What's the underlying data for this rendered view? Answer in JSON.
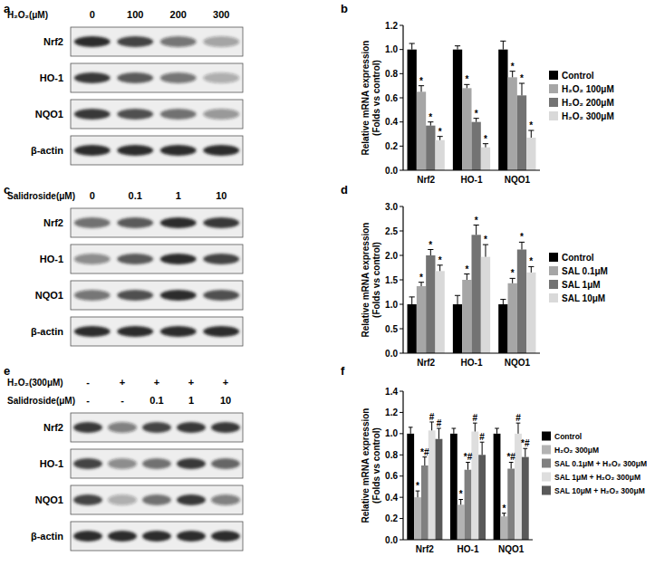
{
  "chart_data": [
    {
      "panel": "b",
      "type": "bar",
      "ylabel": "Relative mRNA expression",
      "ylabel_sub": "(Folds vs control)",
      "categories": [
        "Nrf2",
        "HO-1",
        "NQO1"
      ],
      "ylim": [
        0,
        1.2
      ],
      "yticks": [
        {
          "value": 0,
          "label": "0.0"
        },
        0.2,
        0.4,
        0.6,
        0.8,
        {
          "value": 1,
          "label": "1.0"
        },
        1.2
      ],
      "legend": "right",
      "series": [
        {
          "name": "Control",
          "color": "#000000",
          "values": [
            1.0,
            1.0,
            1.0
          ],
          "errors": [
            0.05,
            0.03,
            0.07
          ],
          "significance": [
            null,
            null,
            null
          ]
        },
        {
          "name": "H₂O₂ 100μM",
          "color": "#a6a6a6",
          "values": [
            0.65,
            0.68,
            0.77
          ],
          "errors": [
            0.05,
            0.03,
            0.05
          ],
          "significance": [
            "*",
            "*",
            "*"
          ]
        },
        {
          "name": "H₂O₂ 200μM",
          "color": "#737373",
          "values": [
            0.37,
            0.4,
            0.62
          ],
          "errors": [
            0.03,
            0.03,
            0.1
          ],
          "significance": [
            "*",
            "*",
            "*"
          ]
        },
        {
          "name": "H₂O₂ 300μM",
          "color": "#d9d9d9",
          "values": [
            0.25,
            0.19,
            0.27
          ],
          "errors": [
            0.03,
            0.03,
            0.06
          ],
          "significance": [
            "*",
            "*",
            "*"
          ]
        }
      ]
    },
    {
      "panel": "d",
      "type": "bar",
      "ylabel": "Relative mRNA expression",
      "ylabel_sub": "(Folds vs control)",
      "categories": [
        "Nrf2",
        "HO-1",
        "NQO1"
      ],
      "ylim": [
        0,
        3
      ],
      "yticks": [
        {
          "value": 0,
          "label": "0.0"
        },
        0.5,
        {
          "value": 1,
          "label": "1.0"
        },
        1.5,
        {
          "value": 2,
          "label": "2.0"
        },
        2.5,
        {
          "value": 3,
          "label": "3.0"
        }
      ],
      "legend": "right",
      "series": [
        {
          "name": "Control",
          "color": "#000000",
          "values": [
            1.0,
            1.0,
            1.0
          ],
          "errors": [
            0.15,
            0.18,
            0.1
          ],
          "significance": [
            null,
            null,
            null
          ]
        },
        {
          "name": "SAL 0.1μM",
          "color": "#a6a6a6",
          "values": [
            1.37,
            1.5,
            1.43
          ],
          "errors": [
            0.08,
            0.12,
            0.1
          ],
          "significance": [
            "*",
            "*",
            "*"
          ]
        },
        {
          "name": "SAL 1μM",
          "color": "#737373",
          "values": [
            2.0,
            2.42,
            2.12
          ],
          "errors": [
            0.12,
            0.2,
            0.15
          ],
          "significance": [
            "*",
            "*",
            "*"
          ]
        },
        {
          "name": "SAL 10μM",
          "color": "#d9d9d9",
          "values": [
            1.68,
            1.97,
            1.65
          ],
          "errors": [
            0.12,
            0.25,
            0.12
          ],
          "significance": [
            "*",
            "*",
            "*"
          ]
        }
      ]
    },
    {
      "panel": "f",
      "type": "bar",
      "ylabel": "Relative mRNA expression",
      "ylabel_sub": "(Folds vs control)",
      "categories": [
        "Nrf2",
        "HO-1",
        "NQO1"
      ],
      "ylim": [
        0,
        1.4
      ],
      "yticks": [
        {
          "value": 0,
          "label": "0.0"
        },
        0.2,
        0.4,
        0.6,
        0.8,
        {
          "value": 1,
          "label": "1.0"
        },
        1.2,
        1.4
      ],
      "legend": "right",
      "series": [
        {
          "name": "Control",
          "color": "#000000",
          "values": [
            1.0,
            1.0,
            1.0
          ],
          "errors": [
            0.06,
            0.05,
            0.05
          ],
          "significance": [
            null,
            null,
            null
          ]
        },
        {
          "name": "H₂O₂ 300μM",
          "color": "#b3b3b3",
          "values": [
            0.4,
            0.33,
            0.22
          ],
          "errors": [
            0.06,
            0.05,
            0.03
          ],
          "significance": [
            "*",
            "*",
            "*"
          ]
        },
        {
          "name": "SAL 0.1μM + H₂O₂ 300μM",
          "color": "#808080",
          "values": [
            0.7,
            0.66,
            0.67
          ],
          "errors": [
            0.08,
            0.07,
            0.06
          ],
          "significance": [
            "*#",
            "*#",
            "*#"
          ]
        },
        {
          "name": "SAL 1μM + H₂O₂ 300μM",
          "color": "#dedede",
          "values": [
            1.03,
            1.02,
            1.0
          ],
          "errors": [
            0.08,
            0.08,
            0.1
          ],
          "significance": [
            "#",
            "#",
            "#"
          ]
        },
        {
          "name": "SAL 10μM + H₂O₂ 300μM",
          "color": "#595959",
          "values": [
            0.95,
            0.8,
            0.78
          ],
          "errors": [
            0.1,
            0.12,
            0.08
          ],
          "significance": [
            "#",
            "#",
            "*#"
          ]
        }
      ]
    }
  ],
  "blots": [
    {
      "panel": "a",
      "headers": [
        {
          "label": "H₂O₂(μM)",
          "lanes": [
            "0",
            "100",
            "200",
            "300"
          ]
        }
      ],
      "rows": [
        {
          "label": "Nrf2",
          "band_intensity": [
            0.9,
            0.8,
            0.55,
            0.35
          ]
        },
        {
          "label": "HO-1",
          "band_intensity": [
            0.85,
            0.7,
            0.55,
            0.3
          ]
        },
        {
          "label": "NQO1",
          "band_intensity": [
            0.85,
            0.75,
            0.6,
            0.4
          ]
        },
        {
          "label": "β-actin",
          "band_intensity": [
            0.9,
            0.9,
            0.9,
            0.9
          ]
        }
      ]
    },
    {
      "panel": "c",
      "headers": [
        {
          "label": "Salidroside(μM)",
          "lanes": [
            "0",
            "0.1",
            "1",
            "10"
          ]
        }
      ],
      "rows": [
        {
          "label": "Nrf2",
          "band_intensity": [
            0.6,
            0.7,
            0.9,
            0.85
          ]
        },
        {
          "label": "HO-1",
          "band_intensity": [
            0.45,
            0.7,
            0.9,
            0.8
          ]
        },
        {
          "label": "NQO1",
          "band_intensity": [
            0.55,
            0.75,
            0.9,
            0.75
          ]
        },
        {
          "label": "β-actin",
          "band_intensity": [
            0.9,
            0.9,
            0.9,
            0.9
          ]
        }
      ]
    },
    {
      "panel": "e",
      "headers": [
        {
          "label": "H₂O₂(300μM)",
          "lanes": [
            "-",
            "+",
            "+",
            "+",
            "+"
          ]
        },
        {
          "label": "Salidroside(μM)",
          "lanes": [
            "-",
            "-",
            "0.1",
            "1",
            "10"
          ]
        }
      ],
      "rows": [
        {
          "label": "Nrf2",
          "band_intensity": [
            0.85,
            0.5,
            0.8,
            0.85,
            0.85
          ]
        },
        {
          "label": "HO-1",
          "band_intensity": [
            0.8,
            0.45,
            0.6,
            0.85,
            0.65
          ]
        },
        {
          "label": "NQO1",
          "band_intensity": [
            0.8,
            0.3,
            0.6,
            0.85,
            0.5
          ]
        },
        {
          "label": "β-actin",
          "band_intensity": [
            0.9,
            0.9,
            0.9,
            0.9,
            0.9
          ]
        }
      ]
    }
  ]
}
